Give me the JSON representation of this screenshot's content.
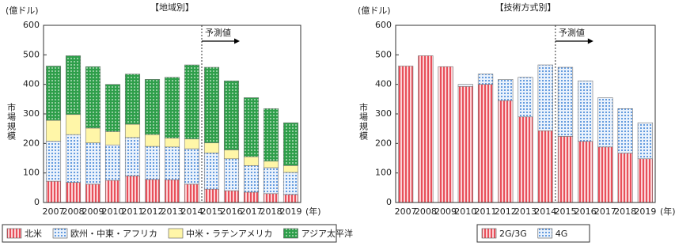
{
  "chart_data": [
    {
      "type": "bar",
      "stacked": true,
      "title": "【地域別】",
      "yunit": "(億ドル)",
      "ylabel": "市場規模",
      "xunit": "(年)",
      "annotation": "予測値",
      "categories": [
        "2007",
        "2008",
        "2009",
        "2010",
        "2011",
        "2012",
        "2013",
        "2014",
        "2015",
        "2016",
        "2017",
        "2018",
        "2019"
      ],
      "series": [
        {
          "name": "北米",
          "color": "#e8505b",
          "pattern": "stripes",
          "values": [
            72,
            68,
            62,
            75,
            90,
            78,
            77,
            62,
            45,
            40,
            35,
            30,
            27
          ]
        },
        {
          "name": "欧州・中東・アフリカ",
          "color": "#3a7fd5",
          "pattern": "dots",
          "values": [
            136,
            162,
            140,
            120,
            130,
            112,
            111,
            120,
            123,
            108,
            90,
            88,
            75
          ]
        },
        {
          "name": "中米・ラテンアメリカ",
          "color": "#fff6a8",
          "pattern": "solid",
          "values": [
            70,
            68,
            50,
            45,
            45,
            40,
            30,
            33,
            34,
            30,
            30,
            22,
            23
          ]
        },
        {
          "name": "アジア太平洋",
          "color": "#2e9e4a",
          "pattern": "dotsdark",
          "values": [
            184,
            199,
            208,
            160,
            170,
            187,
            206,
            251,
            256,
            234,
            200,
            178,
            145
          ]
        }
      ],
      "ylim": [
        0,
        600
      ],
      "yticks": [
        0,
        100,
        200,
        300,
        400,
        500,
        600
      ]
    },
    {
      "type": "bar",
      "stacked": true,
      "title": "【技術方式別】",
      "yunit": "(億ドル)",
      "ylabel": "市場規模",
      "xunit": "(年)",
      "annotation": "予測値",
      "categories": [
        "2007",
        "2008",
        "2009",
        "2010",
        "2011",
        "2012",
        "2013",
        "2014",
        "2015",
        "2016",
        "2017",
        "2018",
        "2019"
      ],
      "series": [
        {
          "name": "2G/3G",
          "color": "#e8505b",
          "pattern": "stripes",
          "values": [
            462,
            497,
            460,
            393,
            400,
            345,
            290,
            243,
            224,
            207,
            188,
            167,
            148
          ]
        },
        {
          "name": "4G",
          "color": "#3a7fd5",
          "pattern": "dots",
          "values": [
            0,
            0,
            0,
            7,
            35,
            72,
            134,
            223,
            234,
            205,
            167,
            151,
            122
          ]
        }
      ],
      "ylim": [
        0,
        600
      ],
      "yticks": [
        0,
        100,
        200,
        300,
        400,
        500,
        600
      ]
    }
  ]
}
